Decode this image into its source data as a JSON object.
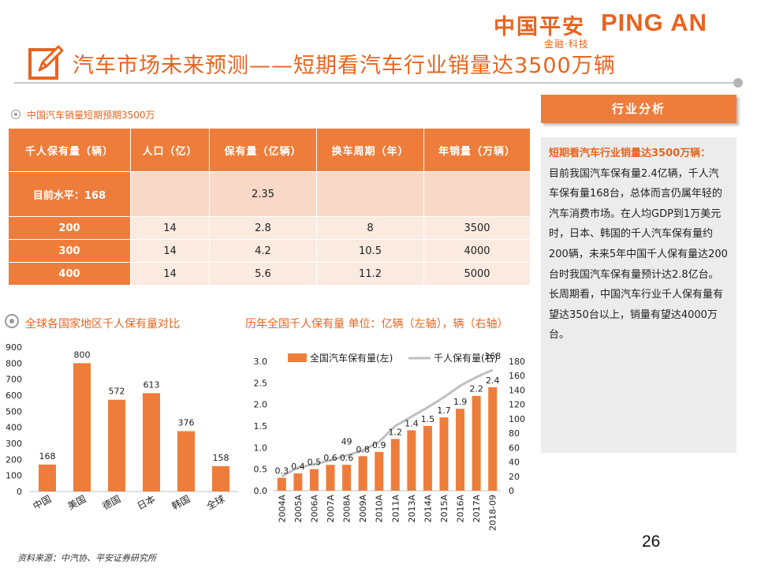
{
  "brand": {
    "name_cn": "中国平安",
    "name_en": "PING AN",
    "tagline": "金融·科技"
  },
  "page_title": "汽车市场未来预测——短期看汽车行业销量达3500万辆",
  "table_section": {
    "caption": "中国汽车销量短期预期3500万",
    "headers": [
      "千人保有量（辆）",
      "人口（亿）",
      "保有量（亿辆）",
      "换车周期（年）",
      "年销量（万辆）"
    ],
    "current_row": [
      "目前水平：168",
      "",
      "2.35",
      "",
      ""
    ],
    "rows": [
      [
        "200",
        "14",
        "2.8",
        "8",
        "3500"
      ],
      [
        "300",
        "14",
        "4.2",
        "10.5",
        "4000"
      ],
      [
        "400",
        "14",
        "5.6",
        "11.2",
        "5000"
      ]
    ]
  },
  "analysis": {
    "header": "行业分析",
    "lead": "短期看汽车行业销量达3500万辆：",
    "paragraphs": [
      "目前我国汽车保有量2.4亿辆，千人汽车保有量168台，总体而言仍属年轻的汽车消费市场。在人均GDP到1万美元时，日本、韩国的千人汽车保有量约200辆，未来5年中国千人保有量达200台时我国汽车保有量预计达2.8亿台。",
      "长周期看，中国汽车行业千人保有量有望达350台以上，销量有望达4000万台。"
    ]
  },
  "chart_captions": {
    "left": "全球各国家地区千人保有量对比",
    "right": "历年全国千人保有量 单位：亿辆（左轴），辆（右轴）"
  },
  "chart_data": [
    {
      "type": "bar",
      "categories": [
        "中国",
        "美国",
        "德国",
        "日本",
        "韩国",
        "全球"
      ],
      "values": [
        168,
        800,
        572,
        613,
        376,
        158
      ],
      "ylim": [
        0,
        900
      ],
      "yticks": [
        0,
        100,
        200,
        300,
        400,
        500,
        600,
        700,
        800,
        900
      ],
      "grid": false,
      "color": "#ee7d3b"
    },
    {
      "type": "bar+line",
      "categories": [
        "2004A",
        "2005A",
        "2006A",
        "2007A",
        "2008A",
        "2009A",
        "2010A",
        "2011A",
        "2013A",
        "2014A",
        "2015A",
        "2016A",
        "2017A",
        "2018-09"
      ],
      "series": [
        {
          "name": "全国汽车保有量(左)",
          "type": "bar",
          "axis": "left",
          "color": "#ee7d3b",
          "values": [
            0.3,
            0.4,
            0.5,
            0.6,
            0.6,
            0.8,
            0.9,
            1.2,
            1.4,
            1.5,
            1.7,
            1.9,
            2.2,
            2.4
          ]
        },
        {
          "name": "千人保有量(右)",
          "type": "line",
          "axis": "right",
          "color": "#bfbfbf",
          "values": [
            20,
            32,
            37,
            42,
            49,
            56,
            68,
            90,
            103,
            116,
            130,
            146,
            158,
            168
          ]
        }
      ],
      "line_labels": [
        {
          "category": "2008A",
          "text": "49"
        },
        {
          "category": "2018-09",
          "text": "168"
        }
      ],
      "y_left": {
        "min": 0,
        "max": 3.0,
        "ticks": [
          "0.0",
          "0.5",
          "1.0",
          "1.5",
          "2.0",
          "2.5",
          "3.0"
        ]
      },
      "y_right": {
        "min": 0,
        "max": 180,
        "ticks": [
          "0",
          "20",
          "40",
          "60",
          "80",
          "100",
          "120",
          "140",
          "160",
          "180"
        ]
      },
      "legend": "top"
    }
  ],
  "page_number": "26",
  "source": "资料来源：中汽协、平安证券研究所"
}
